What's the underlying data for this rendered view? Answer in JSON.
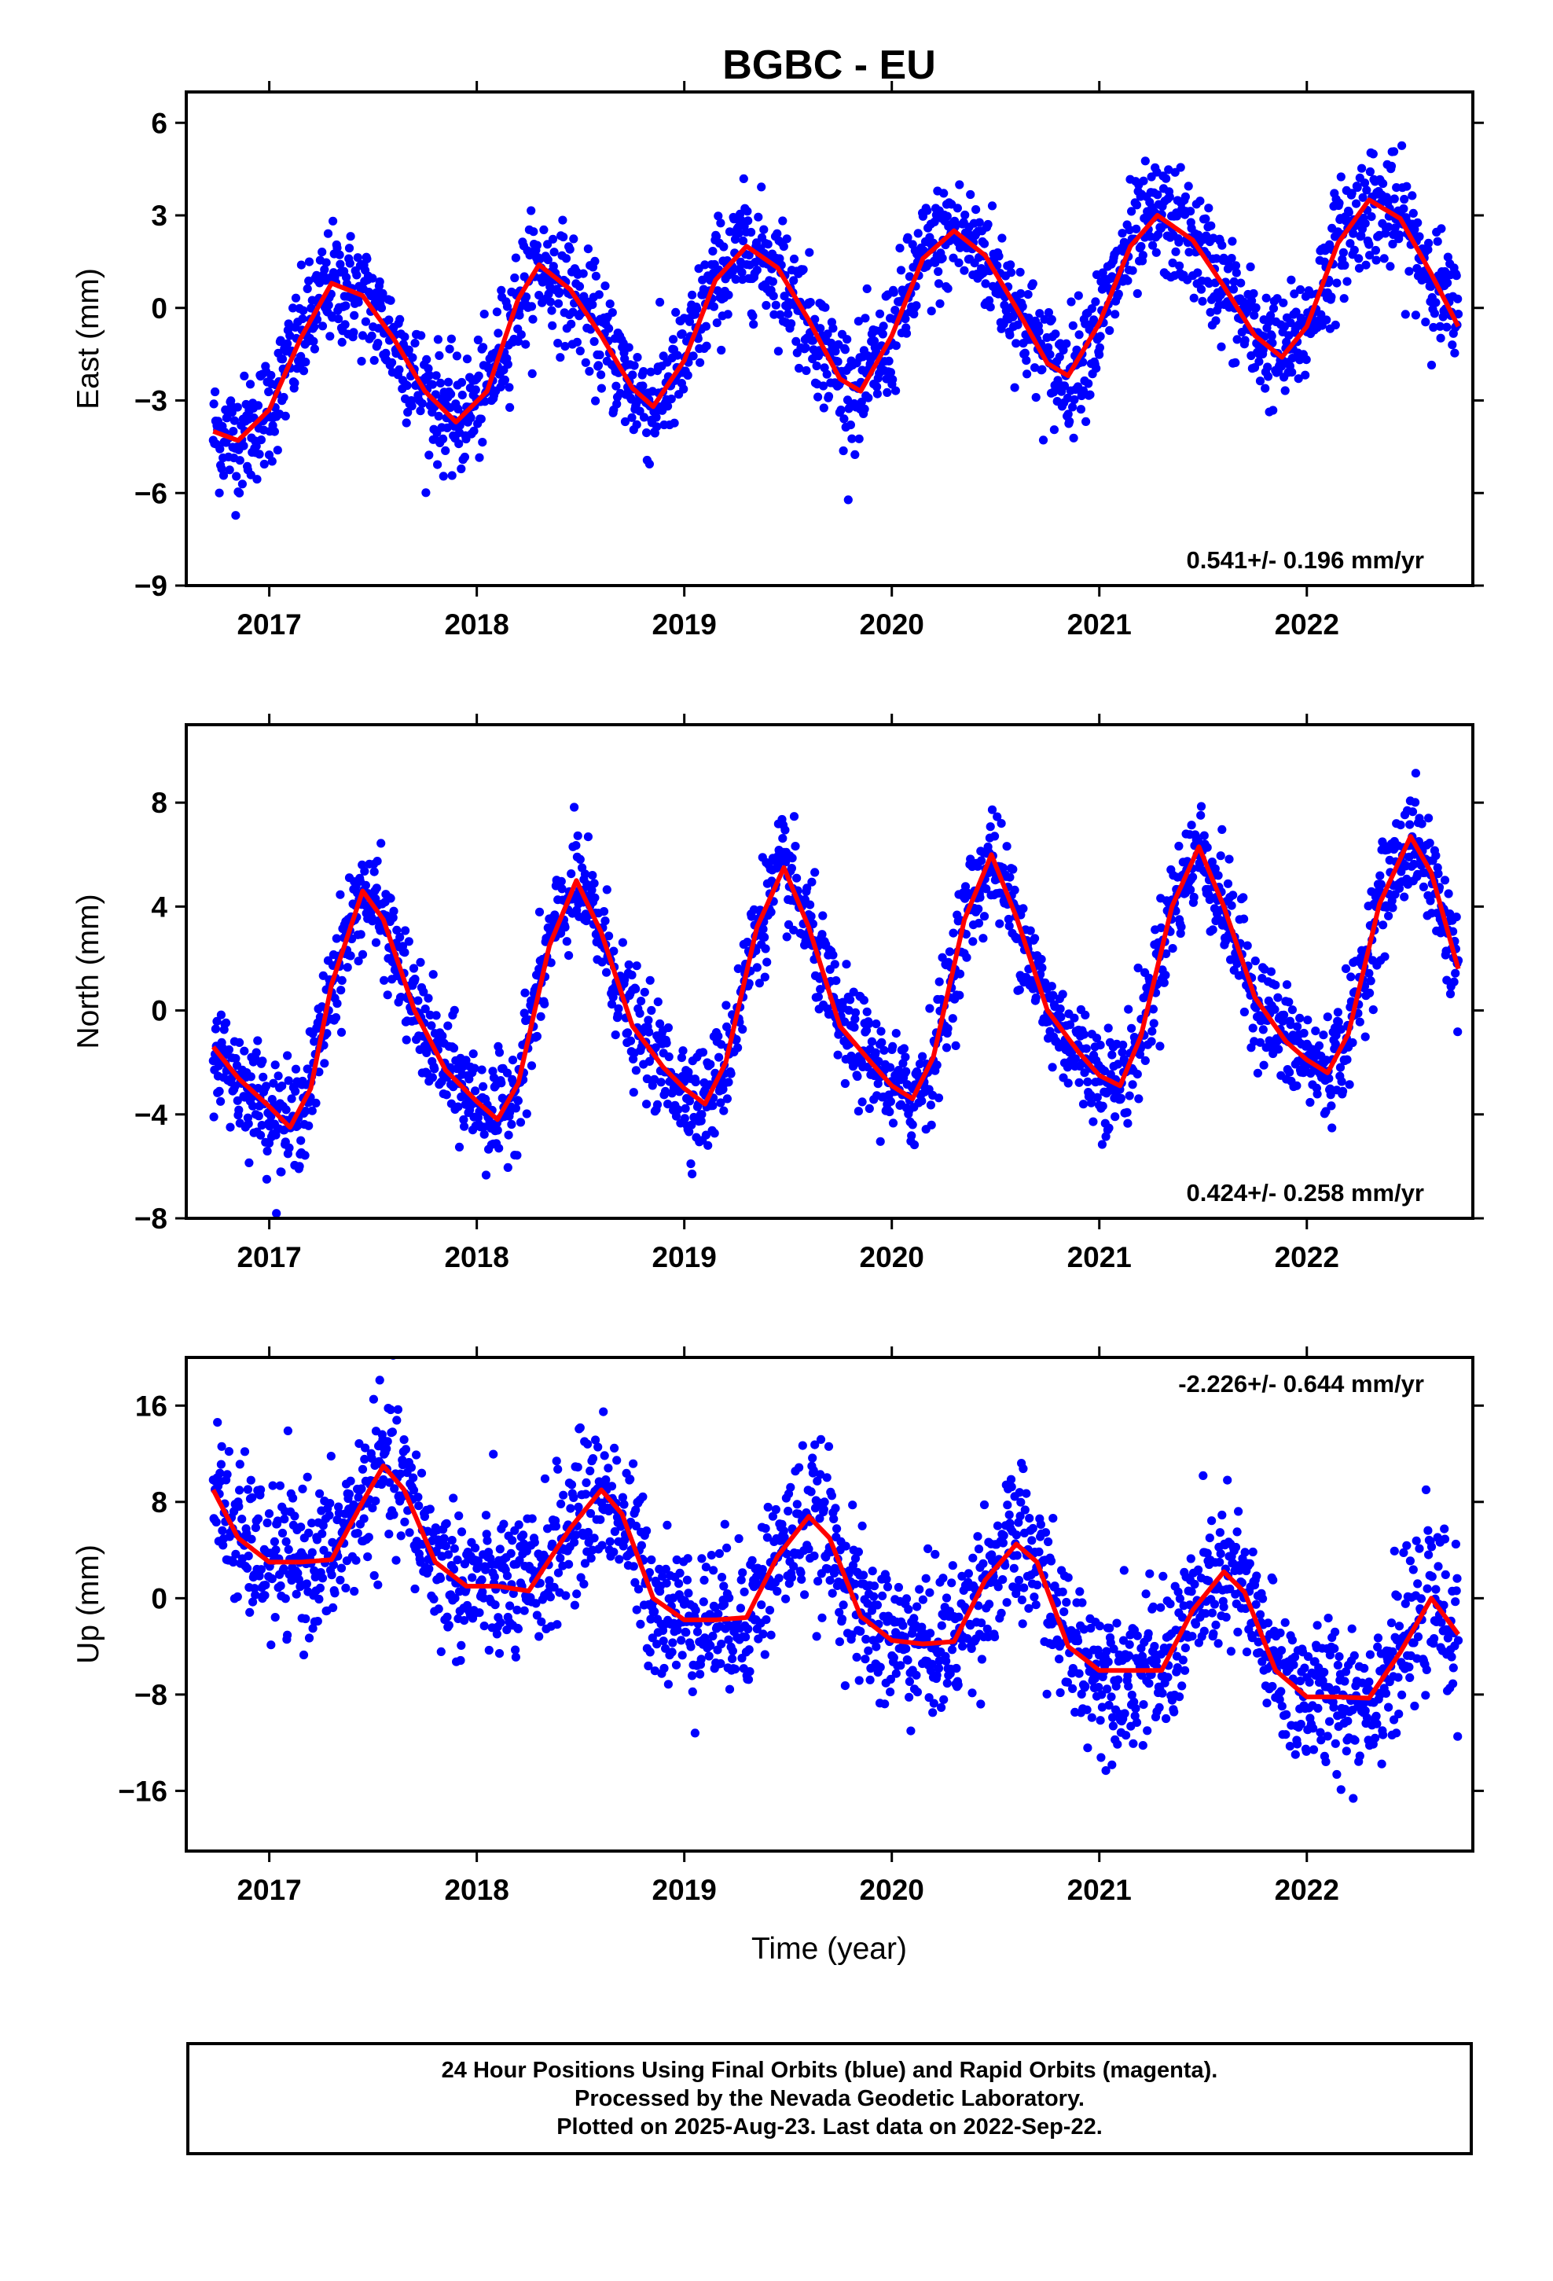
{
  "chart_data": {
    "type": "scatter",
    "title": "BGBC - EU",
    "xlabel": "Time (year)",
    "x_ticks": [
      2017,
      2018,
      2019,
      2020,
      2021,
      2022
    ],
    "x_range": [
      2016.6,
      2022.8
    ],
    "panels": [
      {
        "name": "East",
        "ylabel": "East (mm)",
        "ylim": [
          -9,
          7
        ],
        "y_ticks": [
          -9,
          -6,
          -3,
          0,
          3,
          6
        ],
        "rate_label": "0.541+/- 0.196 mm/yr",
        "rate_label_position": "bottom-right",
        "trend": 0.541,
        "offset": -1.5,
        "seasonal": [
          {
            "amp": 2.2,
            "period": 1.0,
            "phase": 0.02
          },
          {
            "amp": 0.6,
            "period": 0.5,
            "phase": 0.1
          }
        ],
        "noise": 1.1,
        "smooth_curve": [
          [
            2016.73,
            -4.0
          ],
          [
            2016.85,
            -4.3
          ],
          [
            2017.0,
            -3.3
          ],
          [
            2017.15,
            -1.0
          ],
          [
            2017.3,
            0.8
          ],
          [
            2017.45,
            0.4
          ],
          [
            2017.6,
            -1.0
          ],
          [
            2017.75,
            -2.7
          ],
          [
            2017.9,
            -3.7
          ],
          [
            2018.05,
            -2.7
          ],
          [
            2018.2,
            0.3
          ],
          [
            2018.3,
            1.4
          ],
          [
            2018.45,
            0.6
          ],
          [
            2018.6,
            -0.9
          ],
          [
            2018.75,
            -2.6
          ],
          [
            2018.85,
            -3.2
          ],
          [
            2019.0,
            -1.7
          ],
          [
            2019.15,
            0.9
          ],
          [
            2019.3,
            2.0
          ],
          [
            2019.45,
            1.3
          ],
          [
            2019.6,
            -0.4
          ],
          [
            2019.75,
            -2.3
          ],
          [
            2019.85,
            -2.7
          ],
          [
            2020.0,
            -0.9
          ],
          [
            2020.15,
            1.6
          ],
          [
            2020.3,
            2.5
          ],
          [
            2020.45,
            1.7
          ],
          [
            2020.6,
            0.0
          ],
          [
            2020.75,
            -1.8
          ],
          [
            2020.85,
            -2.2
          ],
          [
            2021.0,
            -0.5
          ],
          [
            2021.15,
            2.0
          ],
          [
            2021.28,
            3.0
          ],
          [
            2021.45,
            2.2
          ],
          [
            2021.6,
            0.7
          ],
          [
            2021.75,
            -0.9
          ],
          [
            2021.88,
            -1.6
          ],
          [
            2022.0,
            -0.6
          ],
          [
            2022.15,
            2.1
          ],
          [
            2022.3,
            3.5
          ],
          [
            2022.45,
            2.9
          ],
          [
            2022.6,
            1.1
          ],
          [
            2022.73,
            -0.6
          ]
        ]
      },
      {
        "name": "North",
        "ylabel": "North (mm)",
        "ylim": [
          -8,
          11
        ],
        "y_ticks": [
          -8,
          -4,
          0,
          4,
          8
        ],
        "rate_label": "0.424+/- 0.258 mm/yr",
        "rate_label_position": "bottom-right",
        "trend": 0.424,
        "offset": -0.6,
        "seasonal": [
          {
            "amp": 4.4,
            "period": 1.0,
            "phase": -0.25
          },
          {
            "amp": 1.4,
            "period": 0.5,
            "phase": -0.05
          }
        ],
        "noise": 1.2,
        "smooth_curve": [
          [
            2016.73,
            -1.4
          ],
          [
            2016.85,
            -2.6
          ],
          [
            2017.0,
            -3.7
          ],
          [
            2017.1,
            -4.5
          ],
          [
            2017.2,
            -3.0
          ],
          [
            2017.3,
            1.0
          ],
          [
            2017.45,
            4.6
          ],
          [
            2017.55,
            3.5
          ],
          [
            2017.7,
            0.0
          ],
          [
            2017.85,
            -2.3
          ],
          [
            2018.0,
            -3.5
          ],
          [
            2018.1,
            -4.2
          ],
          [
            2018.2,
            -2.8
          ],
          [
            2018.35,
            2.5
          ],
          [
            2018.48,
            5.0
          ],
          [
            2018.6,
            3.0
          ],
          [
            2018.75,
            -0.6
          ],
          [
            2018.9,
            -2.2
          ],
          [
            2019.0,
            -3.0
          ],
          [
            2019.1,
            -3.6
          ],
          [
            2019.2,
            -2.0
          ],
          [
            2019.35,
            3.2
          ],
          [
            2019.48,
            5.5
          ],
          [
            2019.6,
            3.2
          ],
          [
            2019.75,
            -0.6
          ],
          [
            2019.9,
            -2.0
          ],
          [
            2020.0,
            -2.9
          ],
          [
            2020.1,
            -3.4
          ],
          [
            2020.2,
            -1.8
          ],
          [
            2020.35,
            3.5
          ],
          [
            2020.48,
            6.0
          ],
          [
            2020.6,
            3.6
          ],
          [
            2020.75,
            0.0
          ],
          [
            2020.9,
            -1.6
          ],
          [
            2021.0,
            -2.5
          ],
          [
            2021.1,
            -2.9
          ],
          [
            2021.2,
            -1.0
          ],
          [
            2021.35,
            4.0
          ],
          [
            2021.48,
            6.3
          ],
          [
            2021.6,
            4.0
          ],
          [
            2021.75,
            0.5
          ],
          [
            2021.9,
            -1.2
          ],
          [
            2022.0,
            -1.9
          ],
          [
            2022.1,
            -2.4
          ],
          [
            2022.2,
            -0.9
          ],
          [
            2022.35,
            4.1
          ],
          [
            2022.5,
            6.7
          ],
          [
            2022.6,
            5.3
          ],
          [
            2022.73,
            1.6
          ]
        ]
      },
      {
        "name": "Up",
        "ylabel": "Up (mm)",
        "ylim": [
          -21,
          20
        ],
        "y_ticks": [
          -16,
          -8,
          0,
          8,
          16
        ],
        "rate_label": "-2.226+/- 0.644 mm/yr",
        "rate_label_position": "top-right",
        "trend": -2.226,
        "offset": 2.0,
        "seasonal": [
          {
            "amp": 4.0,
            "period": 1.0,
            "phase": 0.36
          },
          {
            "amp": 2.0,
            "period": 0.5,
            "phase": 0.05
          }
        ],
        "noise": 3.6,
        "smooth_curve": [
          [
            2016.73,
            9.0
          ],
          [
            2016.85,
            5.0
          ],
          [
            2017.0,
            3.0
          ],
          [
            2017.15,
            3.0
          ],
          [
            2017.3,
            3.2
          ],
          [
            2017.45,
            8.0
          ],
          [
            2017.55,
            11.0
          ],
          [
            2017.65,
            9.0
          ],
          [
            2017.8,
            3.0
          ],
          [
            2017.95,
            1.0
          ],
          [
            2018.1,
            1.0
          ],
          [
            2018.25,
            0.6
          ],
          [
            2018.45,
            5.8
          ],
          [
            2018.6,
            9.0
          ],
          [
            2018.7,
            7.0
          ],
          [
            2018.85,
            0.0
          ],
          [
            2019.0,
            -1.8
          ],
          [
            2019.15,
            -1.8
          ],
          [
            2019.3,
            -1.6
          ],
          [
            2019.45,
            3.5
          ],
          [
            2019.6,
            6.8
          ],
          [
            2019.7,
            5.0
          ],
          [
            2019.85,
            -1.5
          ],
          [
            2020.0,
            -3.5
          ],
          [
            2020.15,
            -3.8
          ],
          [
            2020.3,
            -3.6
          ],
          [
            2020.45,
            1.5
          ],
          [
            2020.6,
            4.5
          ],
          [
            2020.7,
            3.0
          ],
          [
            2020.85,
            -4.0
          ],
          [
            2021.0,
            -6.0
          ],
          [
            2021.15,
            -6.0
          ],
          [
            2021.3,
            -6.0
          ],
          [
            2021.45,
            -1.0
          ],
          [
            2021.6,
            2.2
          ],
          [
            2021.7,
            0.5
          ],
          [
            2021.85,
            -6.0
          ],
          [
            2022.0,
            -8.2
          ],
          [
            2022.15,
            -8.2
          ],
          [
            2022.3,
            -8.3
          ],
          [
            2022.45,
            -4.5
          ],
          [
            2022.6,
            0.0
          ],
          [
            2022.73,
            -3.0
          ]
        ]
      }
    ],
    "series": [
      {
        "name": "Final Orbits",
        "color": "#0000ff",
        "mark": "dot"
      },
      {
        "name": "smooth fit",
        "color": "#ff0000",
        "mark": "line"
      }
    ],
    "grid": false,
    "x_start": 2016.73,
    "x_end": 2022.73,
    "n_points": 2050
  },
  "footer": {
    "line1": "24 Hour Positions Using Final Orbits (blue) and Rapid Orbits (magenta).",
    "line2": "Processed by the Nevada Geodetic Laboratory.",
    "line3": "Plotted on 2025-Aug-23. Last data on 2022-Sep-22."
  }
}
